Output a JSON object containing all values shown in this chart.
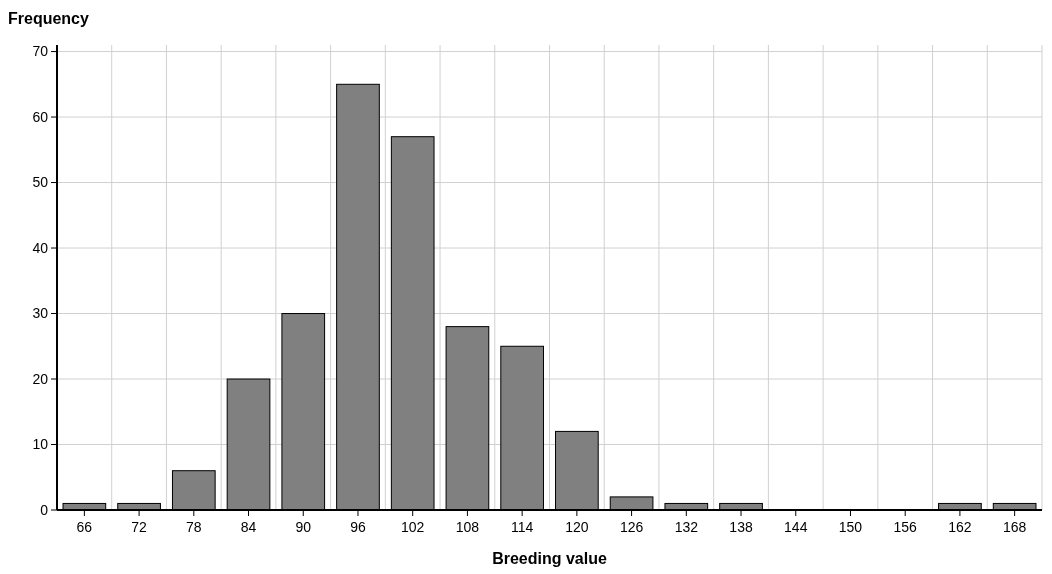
{
  "chart_data": {
    "type": "bar",
    "xlabel": "Breeding value",
    "ylabel": "Frequency",
    "categories": [
      "66",
      "72",
      "78",
      "84",
      "90",
      "96",
      "102",
      "108",
      "114",
      "120",
      "126",
      "132",
      "138",
      "144",
      "150",
      "156",
      "162",
      "168"
    ],
    "values": [
      1,
      1,
      6,
      20,
      30,
      65,
      57,
      28,
      25,
      12,
      2,
      1,
      1,
      0,
      0,
      0,
      1,
      1
    ],
    "color": "#808080",
    "ylim": [
      0,
      71
    ],
    "yticks": [
      0,
      10,
      20,
      30,
      40,
      50,
      60,
      70
    ],
    "grid": true
  }
}
